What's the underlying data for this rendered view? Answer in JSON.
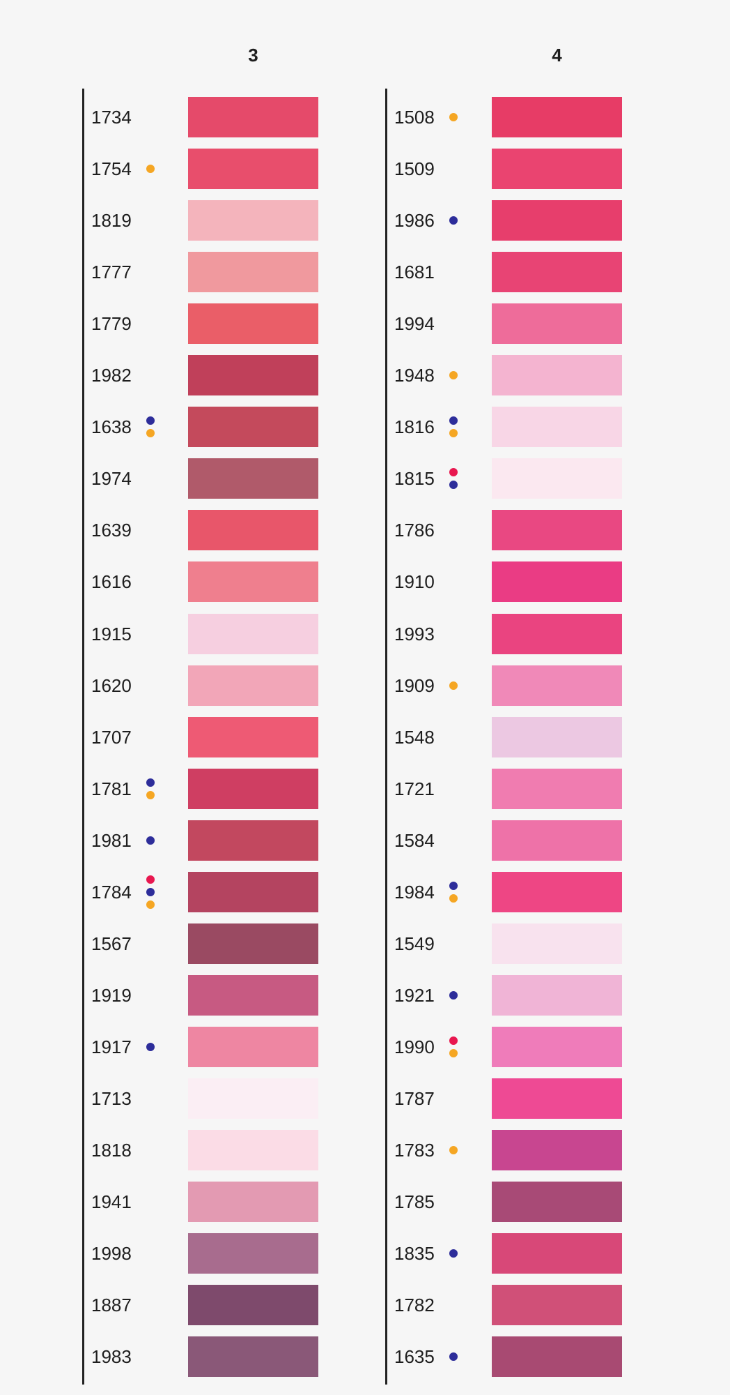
{
  "marker_colors": {
    "o": "#f5a623",
    "b": "#2d2d9a",
    "r": "#e8174f"
  },
  "columns": [
    {
      "title": "3",
      "items": [
        {
          "code": "1734",
          "color": "#e54a6a",
          "markers": []
        },
        {
          "code": "1754",
          "color": "#e84e6c",
          "markers": [
            "o"
          ]
        },
        {
          "code": "1819",
          "color": "#f4b4bc",
          "markers": []
        },
        {
          "code": "1777",
          "color": "#f0999e",
          "markers": []
        },
        {
          "code": "1779",
          "color": "#ea5e68",
          "markers": []
        },
        {
          "code": "1982",
          "color": "#c0405a",
          "markers": []
        },
        {
          "code": "1638",
          "color": "#c44a5c",
          "markers": [
            "b",
            "o"
          ]
        },
        {
          "code": "1974",
          "color": "#b05a6a",
          "markers": []
        },
        {
          "code": "1639",
          "color": "#e8566a",
          "markers": []
        },
        {
          "code": "1616",
          "color": "#ef7f8e",
          "markers": []
        },
        {
          "code": "1915",
          "color": "#f6cfe0",
          "markers": []
        },
        {
          "code": "1620",
          "color": "#f2a6b8",
          "markers": []
        },
        {
          "code": "1707",
          "color": "#ee5a74",
          "markers": []
        },
        {
          "code": "1781",
          "color": "#cf3e62",
          "markers": [
            "b",
            "o"
          ]
        },
        {
          "code": "1981",
          "color": "#c2485f",
          "markers": [
            "b"
          ]
        },
        {
          "code": "1784",
          "color": "#b44460",
          "markers": [
            "r",
            "b",
            "o"
          ]
        },
        {
          "code": "1567",
          "color": "#9a4a62",
          "markers": []
        },
        {
          "code": "1919",
          "color": "#c75a82",
          "markers": []
        },
        {
          "code": "1917",
          "color": "#ee86a2",
          "markers": [
            "b"
          ]
        },
        {
          "code": "1713",
          "color": "#fbeef4",
          "markers": []
        },
        {
          "code": "1818",
          "color": "#fbdce6",
          "markers": []
        },
        {
          "code": "1941",
          "color": "#e39ab2",
          "markers": []
        },
        {
          "code": "1998",
          "color": "#a86c8e",
          "markers": []
        },
        {
          "code": "1887",
          "color": "#7e4a6c",
          "markers": []
        },
        {
          "code": "1983",
          "color": "#8a5878",
          "markers": []
        }
      ]
    },
    {
      "title": "4",
      "items": [
        {
          "code": "1508",
          "color": "#e73c66",
          "markers": [
            "o"
          ]
        },
        {
          "code": "1509",
          "color": "#ea4470",
          "markers": []
        },
        {
          "code": "1986",
          "color": "#e73e6c",
          "markers": [
            "b"
          ]
        },
        {
          "code": "1681",
          "color": "#e84474",
          "markers": []
        },
        {
          "code": "1994",
          "color": "#ee6c9a",
          "markers": []
        },
        {
          "code": "1948",
          "color": "#f4b4d0",
          "markers": [
            "o"
          ]
        },
        {
          "code": "1816",
          "color": "#f8d6e6",
          "markers": [
            "b",
            "o"
          ]
        },
        {
          "code": "1815",
          "color": "#fbe8f0",
          "markers": [
            "r",
            "b"
          ]
        },
        {
          "code": "1786",
          "color": "#e94882",
          "markers": []
        },
        {
          "code": "1910",
          "color": "#ea3c84",
          "markers": []
        },
        {
          "code": "1993",
          "color": "#ea4480",
          "markers": []
        },
        {
          "code": "1909",
          "color": "#f089b8",
          "markers": [
            "o"
          ]
        },
        {
          "code": "1548",
          "color": "#ecc8e2",
          "markers": []
        },
        {
          "code": "1721",
          "color": "#f07cb0",
          "markers": []
        },
        {
          "code": "1584",
          "color": "#ee72a8",
          "markers": []
        },
        {
          "code": "1984",
          "color": "#ee4684",
          "markers": [
            "b",
            "o"
          ]
        },
        {
          "code": "1549",
          "color": "#f8e2ee",
          "markers": []
        },
        {
          "code": "1921",
          "color": "#f0b4d6",
          "markers": [
            "b"
          ]
        },
        {
          "code": "1990",
          "color": "#ef7cba",
          "markers": [
            "r",
            "o"
          ]
        },
        {
          "code": "1787",
          "color": "#ee4a94",
          "markers": []
        },
        {
          "code": "1783",
          "color": "#c84690",
          "markers": [
            "o"
          ]
        },
        {
          "code": "1785",
          "color": "#a84a76",
          "markers": []
        },
        {
          "code": "1835",
          "color": "#d84878",
          "markers": [
            "b"
          ]
        },
        {
          "code": "1782",
          "color": "#d05078",
          "markers": []
        },
        {
          "code": "1635",
          "color": "#a84a72",
          "markers": [
            "b"
          ]
        }
      ]
    }
  ]
}
